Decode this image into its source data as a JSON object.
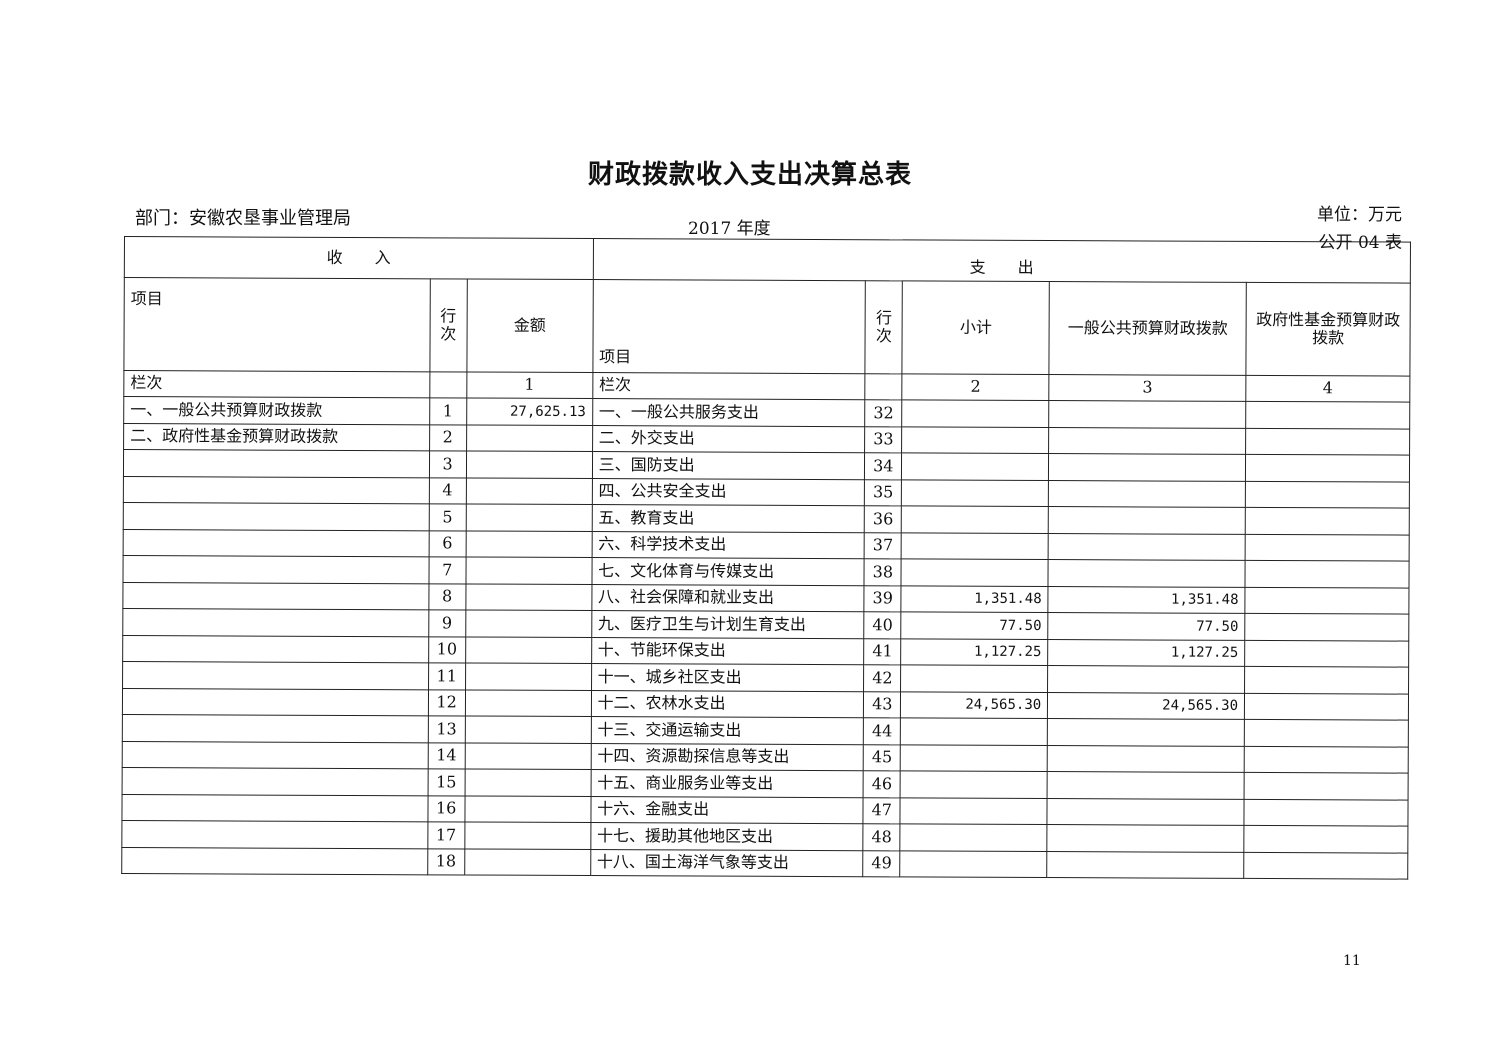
{
  "title": "财政拨款收入支出决算总表",
  "department": "部门：安徽农垦事业管理局",
  "year": "2017 年度",
  "unit": "单位：万元",
  "form_no": "公开 04 表",
  "headers": {
    "income": "收　　入",
    "expense": "支　　出",
    "income_item": "项目",
    "income_line": "行次",
    "income_amount": "金额",
    "expense_item": "项目",
    "expense_line": "行次",
    "subtotal": "小计",
    "general_budget": "一般公共预算财政拨款",
    "gov_fund": "政府性基金预算财政拨款",
    "col_label": "栏次",
    "col1": "1",
    "col2": "2",
    "col3": "3",
    "col4": "4"
  },
  "rows": [
    {
      "in_item": "一、一般公共预算财政拨款",
      "in_line": "1",
      "in_amount": "27,625.13",
      "ex_item": "一、一般公共服务支出",
      "ex_line": "32",
      "subtotal": "",
      "general": "",
      "fund": ""
    },
    {
      "in_item": "二、政府性基金预算财政拨款",
      "in_line": "2",
      "in_amount": "",
      "ex_item": "二、外交支出",
      "ex_line": "33",
      "subtotal": "",
      "general": "",
      "fund": ""
    },
    {
      "in_item": "",
      "in_line": "3",
      "in_amount": "",
      "ex_item": "三、国防支出",
      "ex_line": "34",
      "subtotal": "",
      "general": "",
      "fund": ""
    },
    {
      "in_item": "",
      "in_line": "4",
      "in_amount": "",
      "ex_item": "四、公共安全支出",
      "ex_line": "35",
      "subtotal": "",
      "general": "",
      "fund": ""
    },
    {
      "in_item": "",
      "in_line": "5",
      "in_amount": "",
      "ex_item": "五、教育支出",
      "ex_line": "36",
      "subtotal": "",
      "general": "",
      "fund": ""
    },
    {
      "in_item": "",
      "in_line": "6",
      "in_amount": "",
      "ex_item": "六、科学技术支出",
      "ex_line": "37",
      "subtotal": "",
      "general": "",
      "fund": ""
    },
    {
      "in_item": "",
      "in_line": "7",
      "in_amount": "",
      "ex_item": "七、文化体育与传媒支出",
      "ex_line": "38",
      "subtotal": "",
      "general": "",
      "fund": ""
    },
    {
      "in_item": "",
      "in_line": "8",
      "in_amount": "",
      "ex_item": "八、社会保障和就业支出",
      "ex_line": "39",
      "subtotal": "1,351.48",
      "general": "1,351.48",
      "fund": ""
    },
    {
      "in_item": "",
      "in_line": "9",
      "in_amount": "",
      "ex_item": "九、医疗卫生与计划生育支出",
      "ex_line": "40",
      "subtotal": "77.50",
      "general": "77.50",
      "fund": ""
    },
    {
      "in_item": "",
      "in_line": "10",
      "in_amount": "",
      "ex_item": "十、节能环保支出",
      "ex_line": "41",
      "subtotal": "1,127.25",
      "general": "1,127.25",
      "fund": ""
    },
    {
      "in_item": "",
      "in_line": "11",
      "in_amount": "",
      "ex_item": "十一、城乡社区支出",
      "ex_line": "42",
      "subtotal": "",
      "general": "",
      "fund": ""
    },
    {
      "in_item": "",
      "in_line": "12",
      "in_amount": "",
      "ex_item": "十二、农林水支出",
      "ex_line": "43",
      "subtotal": "24,565.30",
      "general": "24,565.30",
      "fund": ""
    },
    {
      "in_item": "",
      "in_line": "13",
      "in_amount": "",
      "ex_item": "十三、交通运输支出",
      "ex_line": "44",
      "subtotal": "",
      "general": "",
      "fund": ""
    },
    {
      "in_item": "",
      "in_line": "14",
      "in_amount": "",
      "ex_item": "十四、资源勘探信息等支出",
      "ex_line": "45",
      "subtotal": "",
      "general": "",
      "fund": ""
    },
    {
      "in_item": "",
      "in_line": "15",
      "in_amount": "",
      "ex_item": "十五、商业服务业等支出",
      "ex_line": "46",
      "subtotal": "",
      "general": "",
      "fund": ""
    },
    {
      "in_item": "",
      "in_line": "16",
      "in_amount": "",
      "ex_item": "十六、金融支出",
      "ex_line": "47",
      "subtotal": "",
      "general": "",
      "fund": ""
    },
    {
      "in_item": "",
      "in_line": "17",
      "in_amount": "",
      "ex_item": "十七、援助其他地区支出",
      "ex_line": "48",
      "subtotal": "",
      "general": "",
      "fund": ""
    },
    {
      "in_item": "",
      "in_line": "18",
      "in_amount": "",
      "ex_item": "十八、国土海洋气象等支出",
      "ex_line": "49",
      "subtotal": "",
      "general": "",
      "fund": ""
    }
  ],
  "page_number": "11"
}
